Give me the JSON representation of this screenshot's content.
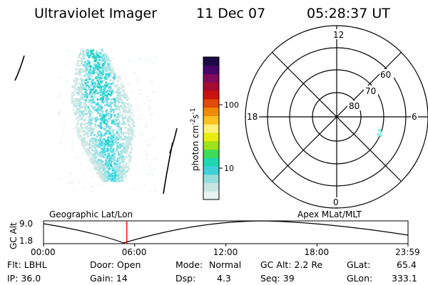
{
  "header": {
    "title": "Ultraviolet Imager",
    "date": "11 Dec 07",
    "time": "05:28:37 UT"
  },
  "colorbar": {
    "unit_text": "photon cm",
    "exp1": "-2",
    "mid_text": "s",
    "exp2": "-1",
    "ticks": [
      {
        "label": "100",
        "value": 100
      },
      {
        "label": "10",
        "value": 10
      }
    ],
    "colors": [
      "#e9f2f1",
      "#c9e6e3",
      "#95dcdc",
      "#3fd0d8",
      "#22d6b0",
      "#3fdc55",
      "#9ee21c",
      "#e8ec10",
      "#fff07a",
      "#f8c020",
      "#ef8a06",
      "#e04a0a",
      "#c8140e",
      "#a50c30",
      "#7e0c58",
      "#46066a",
      "#1c0a44"
    ]
  },
  "polar": {
    "labels": {
      "top": "12",
      "bottom": "0",
      "left": "18",
      "right": "6",
      "lat60": "60",
      "lat70": "70",
      "lat80": "80"
    }
  },
  "altitude_plot": {
    "ylabel": "GC Alt",
    "yticks": [
      "9.0",
      "1.8"
    ],
    "left_label": "Geographic Lat/Lon",
    "right_label": "Apex MLat/MLT",
    "xticks": [
      "00:00",
      "06:00",
      "12:00",
      "18:00",
      "23:59"
    ],
    "current_time_hours": 5.48,
    "marker_color": "#ff0000"
  },
  "info": {
    "flt": "Flt: LBHL",
    "ip": "IP: 36.0",
    "door": "Door: Open",
    "gain": "Gain: 14",
    "mode_label": "Mode:",
    "mode_value": "Normal",
    "dsp_label": "Dsp:",
    "dsp_value": "4.3",
    "gcalt": "GC Alt: 2.2 Re",
    "seq": "Seq: 39",
    "glat_label": "GLat:",
    "glat_value": "65.4",
    "glon_label": "GLon:",
    "glon_value": "333.1"
  }
}
